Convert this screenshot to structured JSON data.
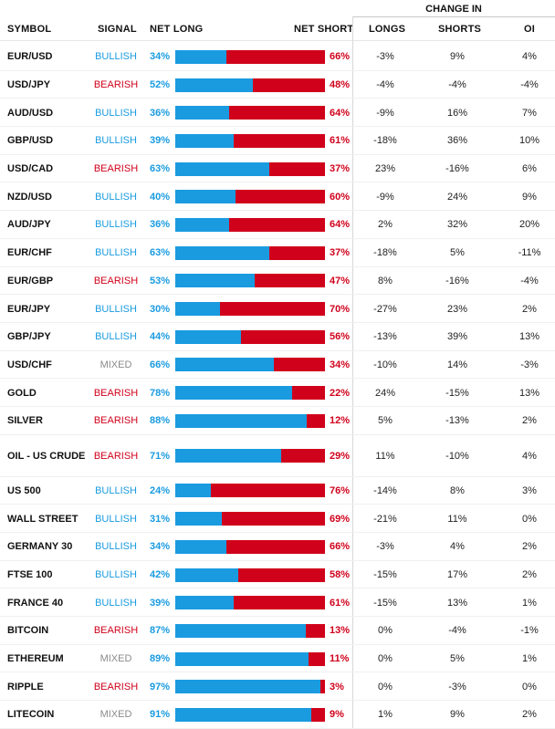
{
  "header": {
    "change_in": "CHANGE IN",
    "symbol": "SYMBOL",
    "signal": "SIGNAL",
    "net_long": "NET LONG",
    "net_short": "NET SHORT",
    "longs": "LONGS",
    "shorts": "SHORTS",
    "oi": "OI"
  },
  "colors": {
    "long": "#1a9be0",
    "short": "#d0021b",
    "mixed": "#8a8a8a"
  },
  "rows": [
    {
      "symbol": "EUR/USD",
      "signal": "BULLISH",
      "net_long": "34%",
      "long_fraction": 0.34,
      "net_short": "66%",
      "longs": "-3%",
      "shorts": "9%",
      "oi": "4%"
    },
    {
      "symbol": "USD/JPY",
      "signal": "BEARISH",
      "net_long": "52%",
      "long_fraction": 0.52,
      "net_short": "48%",
      "longs": "-4%",
      "shorts": "-4%",
      "oi": "-4%"
    },
    {
      "symbol": "AUD/USD",
      "signal": "BULLISH",
      "net_long": "36%",
      "long_fraction": 0.36,
      "net_short": "64%",
      "longs": "-9%",
      "shorts": "16%",
      "oi": "7%"
    },
    {
      "symbol": "GBP/USD",
      "signal": "BULLISH",
      "net_long": "39%",
      "long_fraction": 0.39,
      "net_short": "61%",
      "longs": "-18%",
      "shorts": "36%",
      "oi": "10%"
    },
    {
      "symbol": "USD/CAD",
      "signal": "BEARISH",
      "net_long": "63%",
      "long_fraction": 0.63,
      "net_short": "37%",
      "longs": "23%",
      "shorts": "-16%",
      "oi": "6%"
    },
    {
      "symbol": "NZD/USD",
      "signal": "BULLISH",
      "net_long": "40%",
      "long_fraction": 0.4,
      "net_short": "60%",
      "longs": "-9%",
      "shorts": "24%",
      "oi": "9%"
    },
    {
      "symbol": "AUD/JPY",
      "signal": "BULLISH",
      "net_long": "36%",
      "long_fraction": 0.36,
      "net_short": "64%",
      "longs": "2%",
      "shorts": "32%",
      "oi": "20%"
    },
    {
      "symbol": "EUR/CHF",
      "signal": "BULLISH",
      "net_long": "63%",
      "long_fraction": 0.63,
      "net_short": "37%",
      "longs": "-18%",
      "shorts": "5%",
      "oi": "-11%"
    },
    {
      "symbol": "EUR/GBP",
      "signal": "BEARISH",
      "net_long": "53%",
      "long_fraction": 0.53,
      "net_short": "47%",
      "longs": "8%",
      "shorts": "-16%",
      "oi": "-4%"
    },
    {
      "symbol": "EUR/JPY",
      "signal": "BULLISH",
      "net_long": "30%",
      "long_fraction": 0.3,
      "net_short": "70%",
      "longs": "-27%",
      "shorts": "23%",
      "oi": "2%"
    },
    {
      "symbol": "GBP/JPY",
      "signal": "BULLISH",
      "net_long": "44%",
      "long_fraction": 0.44,
      "net_short": "56%",
      "longs": "-13%",
      "shorts": "39%",
      "oi": "13%"
    },
    {
      "symbol": "USD/CHF",
      "signal": "MIXED",
      "net_long": "66%",
      "long_fraction": 0.66,
      "net_short": "34%",
      "longs": "-10%",
      "shorts": "14%",
      "oi": "-3%"
    },
    {
      "symbol": "GOLD",
      "signal": "BEARISH",
      "net_long": "78%",
      "long_fraction": 0.78,
      "net_short": "22%",
      "longs": "24%",
      "shorts": "-15%",
      "oi": "13%"
    },
    {
      "symbol": "SILVER",
      "signal": "BEARISH",
      "net_long": "88%",
      "long_fraction": 0.88,
      "net_short": "12%",
      "longs": "5%",
      "shorts": "-13%",
      "oi": "2%"
    },
    {
      "symbol": "OIL - US CRUDE",
      "signal": "BEARISH",
      "net_long": "71%",
      "long_fraction": 0.71,
      "net_short": "29%",
      "longs": "11%",
      "shorts": "-10%",
      "oi": "4%",
      "tall": true
    },
    {
      "symbol": "US 500",
      "signal": "BULLISH",
      "net_long": "24%",
      "long_fraction": 0.24,
      "net_short": "76%",
      "longs": "-14%",
      "shorts": "8%",
      "oi": "3%"
    },
    {
      "symbol": "WALL STREET",
      "signal": "BULLISH",
      "net_long": "31%",
      "long_fraction": 0.31,
      "net_short": "69%",
      "longs": "-21%",
      "shorts": "11%",
      "oi": "0%"
    },
    {
      "symbol": "GERMANY 30",
      "signal": "BULLISH",
      "net_long": "34%",
      "long_fraction": 0.34,
      "net_short": "66%",
      "longs": "-3%",
      "shorts": "4%",
      "oi": "2%"
    },
    {
      "symbol": "FTSE 100",
      "signal": "BULLISH",
      "net_long": "42%",
      "long_fraction": 0.42,
      "net_short": "58%",
      "longs": "-15%",
      "shorts": "17%",
      "oi": "2%"
    },
    {
      "symbol": "FRANCE 40",
      "signal": "BULLISH",
      "net_long": "39%",
      "long_fraction": 0.39,
      "net_short": "61%",
      "longs": "-15%",
      "shorts": "13%",
      "oi": "1%"
    },
    {
      "symbol": "BITCOIN",
      "signal": "BEARISH",
      "net_long": "87%",
      "long_fraction": 0.87,
      "net_short": "13%",
      "longs": "0%",
      "shorts": "-4%",
      "oi": "-1%"
    },
    {
      "symbol": "ETHEREUM",
      "signal": "MIXED",
      "net_long": "89%",
      "long_fraction": 0.89,
      "net_short": "11%",
      "longs": "0%",
      "shorts": "5%",
      "oi": "1%"
    },
    {
      "symbol": "RIPPLE",
      "signal": "BEARISH",
      "net_long": "97%",
      "long_fraction": 0.97,
      "net_short": "3%",
      "longs": "0%",
      "shorts": "-3%",
      "oi": "0%"
    },
    {
      "symbol": "LITECOIN",
      "signal": "MIXED",
      "net_long": "91%",
      "long_fraction": 0.91,
      "net_short": "9%",
      "longs": "1%",
      "shorts": "9%",
      "oi": "2%"
    }
  ]
}
